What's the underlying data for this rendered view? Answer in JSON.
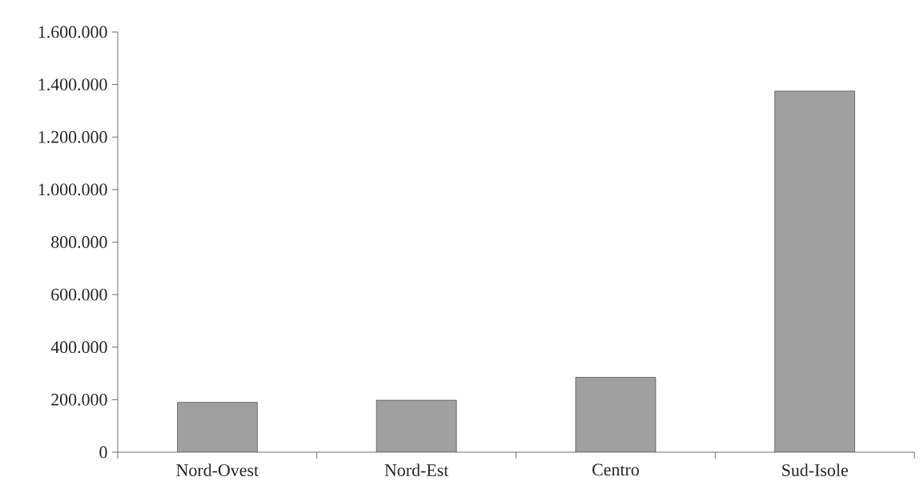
{
  "chart_data": {
    "type": "bar",
    "categories": [
      "Nord-Ovest",
      "Nord-Est",
      "Centro",
      "Sud-Isole"
    ],
    "values": [
      190000,
      198000,
      285000,
      1375000
    ],
    "color": "#a0a0a0",
    "ylim": [
      0,
      1600000
    ],
    "yticks": [
      0,
      {
        "value": 200000,
        "label": "200.000"
      },
      {
        "value": 400000,
        "label": "400.000"
      },
      {
        "value": 600000,
        "label": "600.000"
      },
      {
        "value": 800000,
        "label": "800.000"
      },
      {
        "value": 1000000,
        "label": "1.000.000"
      },
      {
        "value": 1200000,
        "label": "1.200.000"
      },
      {
        "value": 1400000,
        "label": "1.400.000"
      },
      {
        "value": 1600000,
        "label": "1.600.000"
      }
    ],
    "grid": false
  }
}
